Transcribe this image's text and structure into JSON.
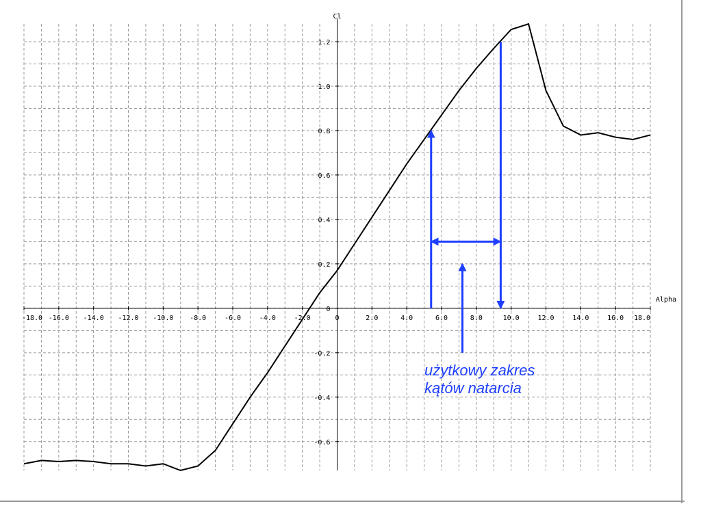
{
  "chart_data": {
    "type": "line",
    "x_label": "Alpha",
    "y_label": "Cl",
    "x": [
      -18,
      -17,
      -16,
      -15,
      -14,
      -13,
      -12,
      -11,
      -10,
      -9,
      -8,
      -7,
      -6,
      -5,
      -4,
      -3,
      -2,
      -1,
      0,
      1,
      2,
      3,
      4,
      5,
      6,
      7,
      8,
      9,
      10,
      11,
      12,
      13,
      14,
      15,
      16,
      17,
      18
    ],
    "series": [
      {
        "color": "#000000",
        "values": [
          -0.7,
          -0.685,
          -0.69,
          -0.685,
          -0.69,
          -0.7,
          -0.7,
          -0.71,
          -0.7,
          -0.73,
          -0.71,
          -0.64,
          -0.52,
          -0.4,
          -0.29,
          -0.17,
          -0.05,
          0.07,
          0.17,
          0.29,
          0.41,
          0.53,
          0.65,
          0.76,
          0.87,
          0.98,
          1.08,
          1.17,
          1.255,
          1.28,
          0.98,
          0.82,
          0.78,
          0.79,
          0.77,
          0.76,
          0.78
        ]
      }
    ],
    "xlim": [
      -18,
      18
    ],
    "ylim": [
      -0.73,
      1.28
    ],
    "xticks": [
      {
        "value": -18,
        "label": "-18.0"
      },
      {
        "value": -16,
        "label": "-16.0"
      },
      {
        "value": -14,
        "label": "-14.0"
      },
      {
        "value": -12,
        "label": "-12.0"
      },
      {
        "value": -10,
        "label": "-10.0"
      },
      {
        "value": -8,
        "label": "-8.0"
      },
      {
        "value": -6,
        "label": "-6.0"
      },
      {
        "value": -4,
        "label": "-4.0"
      },
      {
        "value": -2,
        "label": "-2.0"
      },
      0,
      {
        "value": 2,
        "label": "2.0"
      },
      {
        "value": 4,
        "label": "4.0"
      },
      {
        "value": 6,
        "label": "6.0"
      },
      {
        "value": 8,
        "label": "8.0"
      },
      {
        "value": 10,
        "label": "10.0"
      },
      {
        "value": 12,
        "label": "12.0"
      },
      {
        "value": 14,
        "label": "14.0"
      },
      {
        "value": 16,
        "label": "16.0"
      },
      {
        "value": 18,
        "label": "18.0"
      }
    ],
    "yticks": [
      1.2,
      {
        "value": 1,
        "label": "1.0"
      },
      0.8,
      0.6,
      0.4,
      0.2,
      0,
      -0.2,
      -0.4,
      -0.6
    ],
    "grid": true,
    "annotation": {
      "lines": [
        "użytkowy zakres",
        "kątów natarcia"
      ],
      "color": "#1f3fff",
      "range": [
        5.4,
        9.4
      ],
      "range_cl": [
        0.8,
        1.2
      ],
      "range_arrow_cl": 0.3,
      "pointer": {
        "x": 7.2,
        "from": -0.2,
        "to": 0.2
      }
    }
  }
}
